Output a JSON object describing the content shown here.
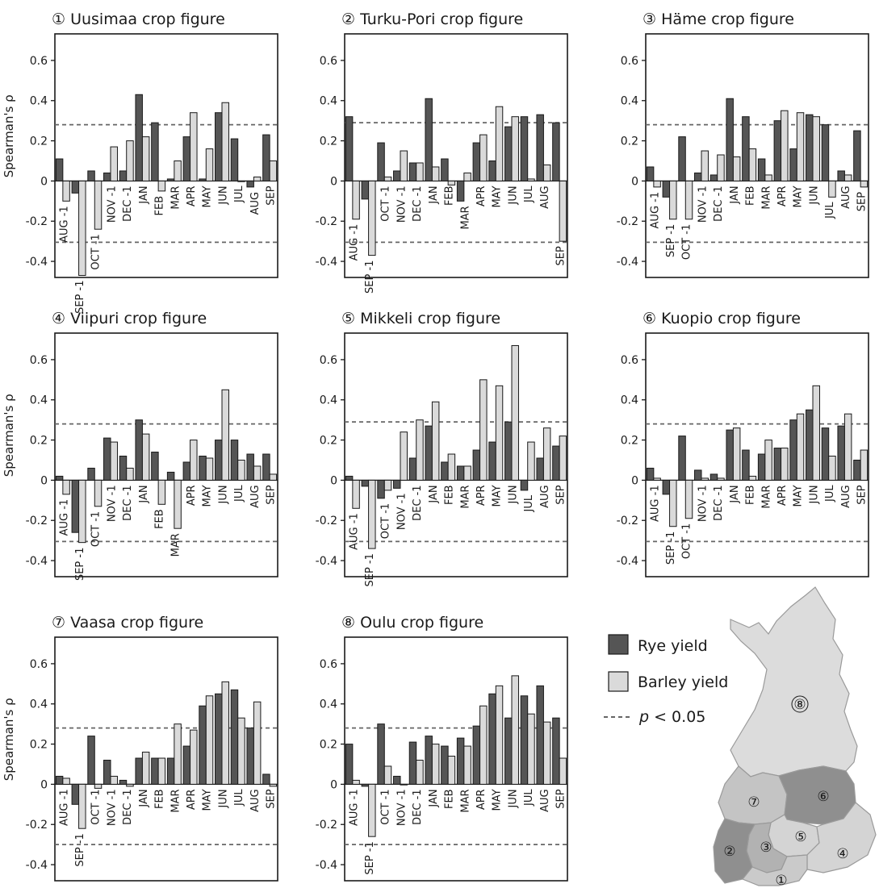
{
  "colors": {
    "rye": "#555555",
    "barley": "#dadada",
    "stroke": "#1a1a1a",
    "threshold": "#666666",
    "map_rye_regions": "#8f8f8f",
    "map_mid": "#bdbdbd",
    "map_light": "#dcdcdc"
  },
  "legend": {
    "rye": "Rye yield",
    "barley": "Barley yield",
    "threshold_p": "p",
    "threshold_rest": " < 0.05"
  },
  "ylabel": "Spearman's ρ",
  "yticks": [
    "0.6",
    "0.4",
    "0.2",
    "0",
    "-0.2",
    "-0.4"
  ],
  "map": {
    "regions": [
      "⑧",
      "⑦",
      "⑥",
      "⑤",
      "④",
      "③",
      "②",
      "①"
    ]
  },
  "chart_data": [
    {
      "type": "bar",
      "title": "① Uusimaa crop figure",
      "ylim": [
        -0.48,
        0.7
      ],
      "threshold": [
        0.28,
        -0.305
      ],
      "categories": [
        "AUG -1",
        "SEP -1",
        "OCT -1",
        "NOV -1",
        "DEC -1",
        "JAN",
        "FEB",
        "MAR",
        "APR",
        "MAY",
        "JUN",
        "JUL",
        "AUG",
        "SEP"
      ],
      "series": [
        {
          "name": "Rye yield",
          "values": [
            0.11,
            -0.06,
            0.05,
            0.04,
            0.05,
            0.43,
            0.29,
            0.01,
            0.22,
            0.01,
            0.34,
            0.21,
            -0.03,
            0.23
          ]
        },
        {
          "name": "Barley yield",
          "values": [
            -0.1,
            -0.47,
            -0.24,
            0.17,
            0.2,
            0.22,
            -0.05,
            0.1,
            0.34,
            0.16,
            0.39,
            0.0,
            0.02,
            0.1
          ]
        }
      ]
    },
    {
      "type": "bar",
      "title": "② Turku-Pori crop figure",
      "ylim": [
        -0.48,
        0.7
      ],
      "threshold": [
        0.29,
        -0.305
      ],
      "categories": [
        "AUG -1",
        "SEP -1",
        "OCT -1",
        "NOV -1",
        "DEC -1",
        "JAN",
        "FEB",
        "MAR",
        "APR",
        "MAY",
        "JUN",
        "JUL",
        "AUG",
        "SEP"
      ],
      "series": [
        {
          "name": "Rye yield",
          "values": [
            0.32,
            -0.09,
            0.19,
            0.05,
            0.09,
            0.41,
            0.11,
            -0.1,
            0.19,
            0.1,
            0.27,
            0.32,
            0.33,
            0.29
          ]
        },
        {
          "name": "Barley yield",
          "values": [
            -0.19,
            -0.37,
            0.02,
            0.15,
            0.09,
            0.07,
            -0.02,
            0.04,
            0.23,
            0.37,
            0.32,
            0.01,
            0.08,
            -0.3
          ]
        }
      ]
    },
    {
      "type": "bar",
      "title": "③ Häme crop figure",
      "ylim": [
        -0.48,
        0.7
      ],
      "threshold": [
        0.28,
        -0.305
      ],
      "categories": [
        "AUG -1",
        "SEP -1",
        "OCT -1",
        "NOV -1",
        "DEC -1",
        "JAN",
        "FEB",
        "MAR",
        "APR",
        "MAY",
        "JUN",
        "JUL",
        "AUG",
        "SEP"
      ],
      "series": [
        {
          "name": "Rye yield",
          "values": [
            0.07,
            -0.08,
            0.22,
            0.04,
            0.03,
            0.41,
            0.32,
            0.11,
            0.3,
            0.16,
            0.33,
            0.28,
            0.05,
            0.25
          ]
        },
        {
          "name": "Barley yield",
          "values": [
            -0.03,
            -0.19,
            -0.19,
            0.15,
            0.13,
            0.12,
            0.16,
            0.03,
            0.35,
            0.34,
            0.32,
            -0.08,
            0.03,
            -0.03
          ]
        }
      ]
    },
    {
      "type": "bar",
      "title": "④ Viipuri crop figure",
      "ylim": [
        -0.48,
        0.7
      ],
      "threshold": [
        0.28,
        -0.305
      ],
      "categories": [
        "AUG -1",
        "SEP -1",
        "OCT -1",
        "NOV -1",
        "DEC -1",
        "JAN",
        "FEB",
        "MAR",
        "APR",
        "MAY",
        "JUN",
        "JUL",
        "AUG",
        "SEP"
      ],
      "series": [
        {
          "name": "Rye yield",
          "values": [
            0.02,
            -0.26,
            0.06,
            0.21,
            0.12,
            0.3,
            0.14,
            0.04,
            0.09,
            0.12,
            0.2,
            0.2,
            0.13,
            0.13
          ]
        },
        {
          "name": "Barley yield",
          "values": [
            -0.07,
            -0.31,
            -0.13,
            0.19,
            0.06,
            0.23,
            -0.12,
            -0.24,
            0.2,
            0.11,
            0.45,
            0.1,
            0.07,
            0.03
          ]
        }
      ]
    },
    {
      "type": "bar",
      "title": "⑤ Mikkeli crop figure",
      "ylim": [
        -0.48,
        0.7
      ],
      "threshold": [
        0.29,
        -0.305
      ],
      "categories": [
        "AUG -1",
        "SEP -1",
        "OCT -1",
        "NOV -1",
        "DEC -1",
        "JAN",
        "FEB",
        "MAR",
        "APR",
        "MAY",
        "JUN",
        "JUL",
        "AUG",
        "SEP"
      ],
      "series": [
        {
          "name": "Rye yield",
          "values": [
            0.02,
            -0.03,
            -0.09,
            -0.04,
            0.11,
            0.27,
            0.09,
            0.07,
            0.15,
            0.19,
            0.29,
            -0.05,
            0.11,
            0.17
          ]
        },
        {
          "name": "Barley yield",
          "values": [
            -0.14,
            -0.34,
            -0.05,
            0.24,
            0.3,
            0.39,
            0.13,
            0.07,
            0.5,
            0.47,
            0.67,
            0.19,
            0.26,
            0.22
          ]
        }
      ]
    },
    {
      "type": "bar",
      "title": "⑥ Kuopio crop figure",
      "ylim": [
        -0.48,
        0.7
      ],
      "threshold": [
        0.28,
        -0.305
      ],
      "categories": [
        "AUG -1",
        "SEP -1",
        "OCT -1",
        "NOV -1",
        "DEC -1",
        "JAN",
        "FEB",
        "MAR",
        "APR",
        "MAY",
        "JUN",
        "JUL",
        "AUG",
        "SEP"
      ],
      "series": [
        {
          "name": "Rye yield",
          "values": [
            0.06,
            -0.07,
            0.22,
            0.05,
            0.03,
            0.25,
            0.15,
            0.13,
            0.16,
            0.3,
            0.35,
            0.26,
            0.27,
            0.1
          ]
        },
        {
          "name": "Barley yield",
          "values": [
            0.01,
            -0.23,
            -0.19,
            0.01,
            0.01,
            0.26,
            0.02,
            0.2,
            0.16,
            0.33,
            0.47,
            0.12,
            0.33,
            0.15
          ]
        }
      ]
    },
    {
      "type": "bar",
      "title": "⑦ Vaasa crop figure",
      "ylim": [
        -0.48,
        0.7
      ],
      "threshold": [
        0.28,
        -0.3
      ],
      "categories": [
        "AUG -1",
        "SEP -1",
        "OCT -1",
        "NOV -1",
        "DEC -1",
        "JAN",
        "FEB",
        "MAR",
        "APR",
        "MAY",
        "JUN",
        "JUL",
        "AUG",
        "SEP"
      ],
      "series": [
        {
          "name": "Rye yield",
          "values": [
            0.04,
            -0.1,
            0.24,
            0.12,
            0.02,
            0.13,
            0.13,
            0.13,
            0.19,
            0.39,
            0.45,
            0.47,
            0.28,
            0.05
          ]
        },
        {
          "name": "Barley yield",
          "values": [
            0.03,
            -0.22,
            -0.02,
            0.04,
            -0.01,
            0.16,
            0.13,
            0.3,
            0.27,
            0.44,
            0.51,
            0.33,
            0.41,
            -0.01
          ]
        }
      ]
    },
    {
      "type": "bar",
      "title": "⑧ Oulu crop figure",
      "ylim": [
        -0.48,
        0.7
      ],
      "threshold": [
        0.28,
        -0.3
      ],
      "categories": [
        "AUG -1",
        "SEP -1",
        "OCT -1",
        "NOV -1",
        "DEC -1",
        "JAN",
        "FEB",
        "MAR",
        "APR",
        "MAY",
        "JUN",
        "JUL",
        "AUG",
        "SEP"
      ],
      "series": [
        {
          "name": "Rye yield",
          "values": [
            0.2,
            -0.01,
            0.3,
            0.04,
            0.21,
            0.24,
            0.19,
            0.23,
            0.29,
            0.45,
            0.33,
            0.44,
            0.49,
            0.33
          ]
        },
        {
          "name": "Barley yield",
          "values": [
            0.02,
            -0.26,
            0.09,
            0.0,
            0.12,
            0.2,
            0.14,
            0.19,
            0.39,
            0.49,
            0.54,
            0.35,
            0.31,
            0.13
          ]
        }
      ]
    }
  ]
}
